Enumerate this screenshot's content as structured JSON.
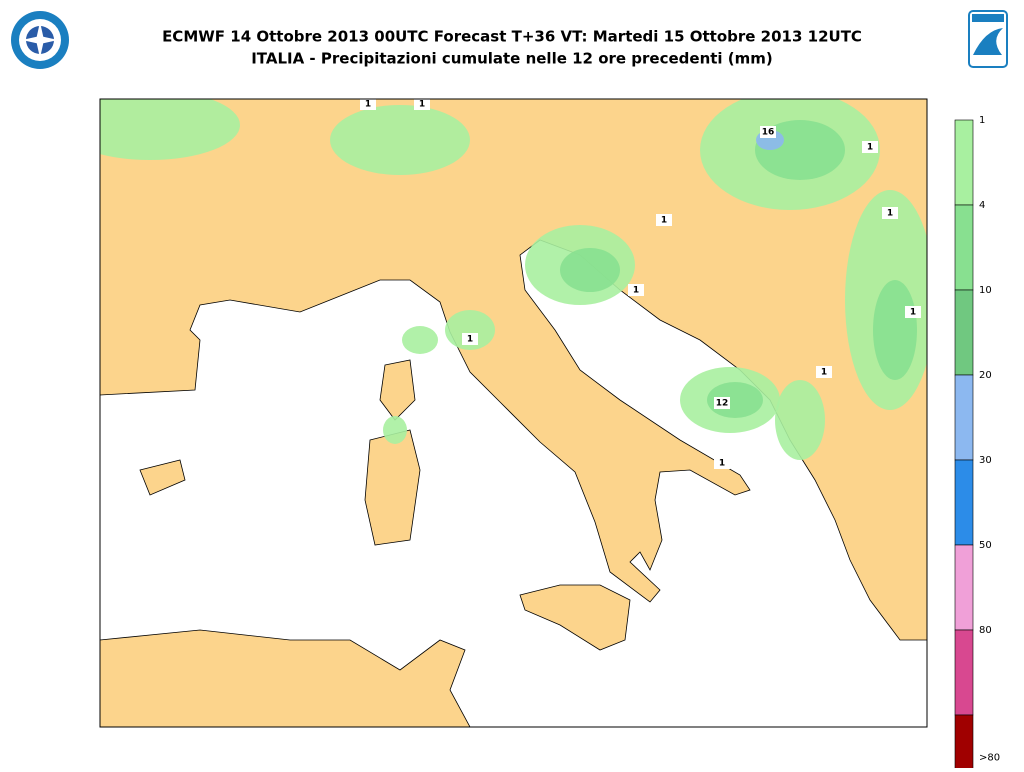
{
  "header": {
    "title": "ECMWF 14 Ottobre 2013 00UTC Forecast T+36 VT: Martedi 15 Ottobre 2013 12UTC",
    "subtitle": "ITALIA - Precipitazioni cumulate nelle 12 ore precedenti (mm)"
  },
  "map": {
    "contour_labels": [
      1,
      1,
      1,
      1,
      1,
      1,
      1,
      1,
      1,
      1,
      16,
      12
    ],
    "land_color": "#fcd48c",
    "sea_color": "#ffffff"
  },
  "legend": {
    "levels": [
      1,
      4,
      10,
      20,
      30,
      50,
      80
    ],
    "top_label": ">80",
    "colors": [
      "#a8f0a0",
      "#88e090",
      "#70c880",
      "#8cb8f0",
      "#2c8ce8",
      "#f0a0d8",
      "#d84890",
      "#a00000"
    ]
  }
}
